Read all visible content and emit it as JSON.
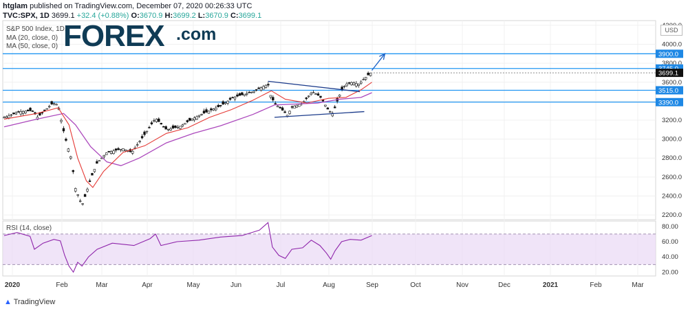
{
  "header": {
    "publisher": "htglam",
    "published_text": "published on TradingView.com, December 07, 2020 00:26:33 UTC",
    "symbol": "TVC:SPX, 1D",
    "last": "3699.1",
    "change": "+32.4 (+0.88%)",
    "o_label": "O:",
    "o": "3670.9",
    "h_label": "H:",
    "h": "3699.2",
    "l_label": "L:",
    "l": "3670.9",
    "c_label": "C:",
    "c": "3699.1"
  },
  "legend": {
    "title": "S&P 500 Index, 1D,",
    "ma20": "MA (20, close, 0)",
    "ma50": "MA (50, close, 0)",
    "rsi": "RSI (14, close)"
  },
  "logo": {
    "brand": "FOREX",
    "suffix": ".com"
  },
  "footer": {
    "brand": "TradingView"
  },
  "currency": "USD",
  "colors": {
    "up": "#26a69a",
    "ma20": "#e53935",
    "ma50": "#ab47bc",
    "level": "#2196f3",
    "rsi_band": "#e9d8f5",
    "label_bg": "#1e88e5"
  },
  "chart_data": [
    {
      "type": "candlestick",
      "title": "S&P 500 Index, 1D",
      "ylabel": "USD",
      "ylim": [
        2150,
        4250
      ],
      "y_ticks": [
        2200,
        2400,
        2600,
        2800,
        3000,
        3200,
        3400,
        3600,
        3800,
        4000,
        4200
      ],
      "x_ticks": [
        "2020",
        "Feb",
        "Mar",
        "Apr",
        "May",
        "Jun",
        "Jul",
        "Aug",
        "Sep",
        "Oct",
        "Nov",
        "Dec",
        "2021",
        "Feb",
        "Mar"
      ],
      "close_path": [
        {
          "d": 0,
          "v": 3230
        },
        {
          "d": 14,
          "v": 3290
        },
        {
          "d": 26,
          "v": 3300
        },
        {
          "d": 31,
          "v": 3230
        },
        {
          "d": 45,
          "v": 3380
        },
        {
          "d": 50,
          "v": 3360
        },
        {
          "d": 54,
          "v": 3130
        },
        {
          "d": 58,
          "v": 2950
        },
        {
          "d": 62,
          "v": 2800
        },
        {
          "d": 66,
          "v": 2480
        },
        {
          "d": 72,
          "v": 2300
        },
        {
          "d": 75,
          "v": 2400
        },
        {
          "d": 80,
          "v": 2580
        },
        {
          "d": 86,
          "v": 2750
        },
        {
          "d": 95,
          "v": 2860
        },
        {
          "d": 110,
          "v": 2900
        },
        {
          "d": 118,
          "v": 2860
        },
        {
          "d": 130,
          "v": 3050
        },
        {
          "d": 140,
          "v": 3220
        },
        {
          "d": 150,
          "v": 3100
        },
        {
          "d": 162,
          "v": 3130
        },
        {
          "d": 172,
          "v": 3200
        },
        {
          "d": 182,
          "v": 3260
        },
        {
          "d": 200,
          "v": 3350
        },
        {
          "d": 212,
          "v": 3440
        },
        {
          "d": 230,
          "v": 3500
        },
        {
          "d": 244,
          "v": 3580
        },
        {
          "d": 246,
          "v": 3470
        },
        {
          "d": 250,
          "v": 3380
        },
        {
          "d": 256,
          "v": 3320
        },
        {
          "d": 262,
          "v": 3250
        },
        {
          "d": 266,
          "v": 3340
        },
        {
          "d": 276,
          "v": 3380
        },
        {
          "d": 285,
          "v": 3500
        },
        {
          "d": 292,
          "v": 3450
        },
        {
          "d": 296,
          "v": 3380
        },
        {
          "d": 300,
          "v": 3300
        },
        {
          "d": 304,
          "v": 3270
        },
        {
          "d": 308,
          "v": 3400
        },
        {
          "d": 312,
          "v": 3520
        },
        {
          "d": 316,
          "v": 3580
        },
        {
          "d": 322,
          "v": 3600
        },
        {
          "d": 328,
          "v": 3580
        },
        {
          "d": 333,
          "v": 3640
        },
        {
          "d": 339,
          "v": 3699.1
        }
      ],
      "ma20_path": [
        {
          "d": 0,
          "v": 3210
        },
        {
          "d": 30,
          "v": 3270
        },
        {
          "d": 50,
          "v": 3330
        },
        {
          "d": 60,
          "v": 3150
        },
        {
          "d": 68,
          "v": 2800
        },
        {
          "d": 76,
          "v": 2560
        },
        {
          "d": 82,
          "v": 2490
        },
        {
          "d": 92,
          "v": 2660
        },
        {
          "d": 110,
          "v": 2860
        },
        {
          "d": 130,
          "v": 2930
        },
        {
          "d": 150,
          "v": 3060
        },
        {
          "d": 170,
          "v": 3120
        },
        {
          "d": 190,
          "v": 3230
        },
        {
          "d": 210,
          "v": 3310
        },
        {
          "d": 230,
          "v": 3410
        },
        {
          "d": 247,
          "v": 3510
        },
        {
          "d": 260,
          "v": 3420
        },
        {
          "d": 280,
          "v": 3380
        },
        {
          "d": 300,
          "v": 3430
        },
        {
          "d": 316,
          "v": 3440
        },
        {
          "d": 330,
          "v": 3520
        },
        {
          "d": 340,
          "v": 3600
        }
      ],
      "ma50_path": [
        {
          "d": 0,
          "v": 3130
        },
        {
          "d": 30,
          "v": 3210
        },
        {
          "d": 55,
          "v": 3270
        },
        {
          "d": 66,
          "v": 3150
        },
        {
          "d": 80,
          "v": 2920
        },
        {
          "d": 95,
          "v": 2760
        },
        {
          "d": 108,
          "v": 2720
        },
        {
          "d": 125,
          "v": 2800
        },
        {
          "d": 150,
          "v": 2960
        },
        {
          "d": 175,
          "v": 3060
        },
        {
          "d": 200,
          "v": 3140
        },
        {
          "d": 230,
          "v": 3260
        },
        {
          "d": 250,
          "v": 3360
        },
        {
          "d": 270,
          "v": 3370
        },
        {
          "d": 290,
          "v": 3380
        },
        {
          "d": 310,
          "v": 3420
        },
        {
          "d": 330,
          "v": 3440
        },
        {
          "d": 340,
          "v": 3490
        }
      ],
      "levels": [
        {
          "label": "3900.0",
          "value": 3900
        },
        {
          "label": "3745.0",
          "value": 3745
        },
        {
          "label": "3515.0",
          "value": 3515
        },
        {
          "label": "3390.0",
          "value": 3390
        }
      ],
      "last_label": "3699.1",
      "triangle": {
        "upper": [
          {
            "d": 244,
            "v": 3610
          },
          {
            "d": 329,
            "v": 3500
          }
        ],
        "lower": [
          {
            "d": 250,
            "v": 3230
          },
          {
            "d": 333,
            "v": 3290
          }
        ]
      },
      "arrow": {
        "from": {
          "d": 340,
          "v": 3725
        },
        "to": {
          "d": 352,
          "v": 3900
        }
      }
    },
    {
      "type": "line",
      "title": "RSI (14, close)",
      "ylim": [
        15,
        87
      ],
      "y_ticks": [
        20.0,
        40.0,
        60.0,
        80.0
      ],
      "band": [
        30,
        70
      ],
      "rsi_path": [
        {
          "d": 0,
          "v": 68
        },
        {
          "d": 12,
          "v": 72
        },
        {
          "d": 24,
          "v": 67
        },
        {
          "d": 28,
          "v": 50
        },
        {
          "d": 36,
          "v": 58
        },
        {
          "d": 46,
          "v": 63
        },
        {
          "d": 52,
          "v": 61
        },
        {
          "d": 56,
          "v": 42
        },
        {
          "d": 60,
          "v": 28
        },
        {
          "d": 64,
          "v": 20
        },
        {
          "d": 68,
          "v": 33
        },
        {
          "d": 72,
          "v": 28
        },
        {
          "d": 78,
          "v": 40
        },
        {
          "d": 86,
          "v": 50
        },
        {
          "d": 100,
          "v": 58
        },
        {
          "d": 120,
          "v": 55
        },
        {
          "d": 135,
          "v": 64
        },
        {
          "d": 140,
          "v": 70
        },
        {
          "d": 145,
          "v": 55
        },
        {
          "d": 160,
          "v": 60
        },
        {
          "d": 180,
          "v": 62
        },
        {
          "d": 200,
          "v": 66
        },
        {
          "d": 220,
          "v": 68
        },
        {
          "d": 236,
          "v": 75
        },
        {
          "d": 244,
          "v": 85
        },
        {
          "d": 248,
          "v": 53
        },
        {
          "d": 254,
          "v": 42
        },
        {
          "d": 260,
          "v": 38
        },
        {
          "d": 266,
          "v": 50
        },
        {
          "d": 276,
          "v": 52
        },
        {
          "d": 284,
          "v": 62
        },
        {
          "d": 292,
          "v": 55
        },
        {
          "d": 298,
          "v": 45
        },
        {
          "d": 302,
          "v": 37
        },
        {
          "d": 306,
          "v": 48
        },
        {
          "d": 312,
          "v": 60
        },
        {
          "d": 320,
          "v": 63
        },
        {
          "d": 330,
          "v": 62
        },
        {
          "d": 340,
          "v": 68
        }
      ]
    }
  ]
}
